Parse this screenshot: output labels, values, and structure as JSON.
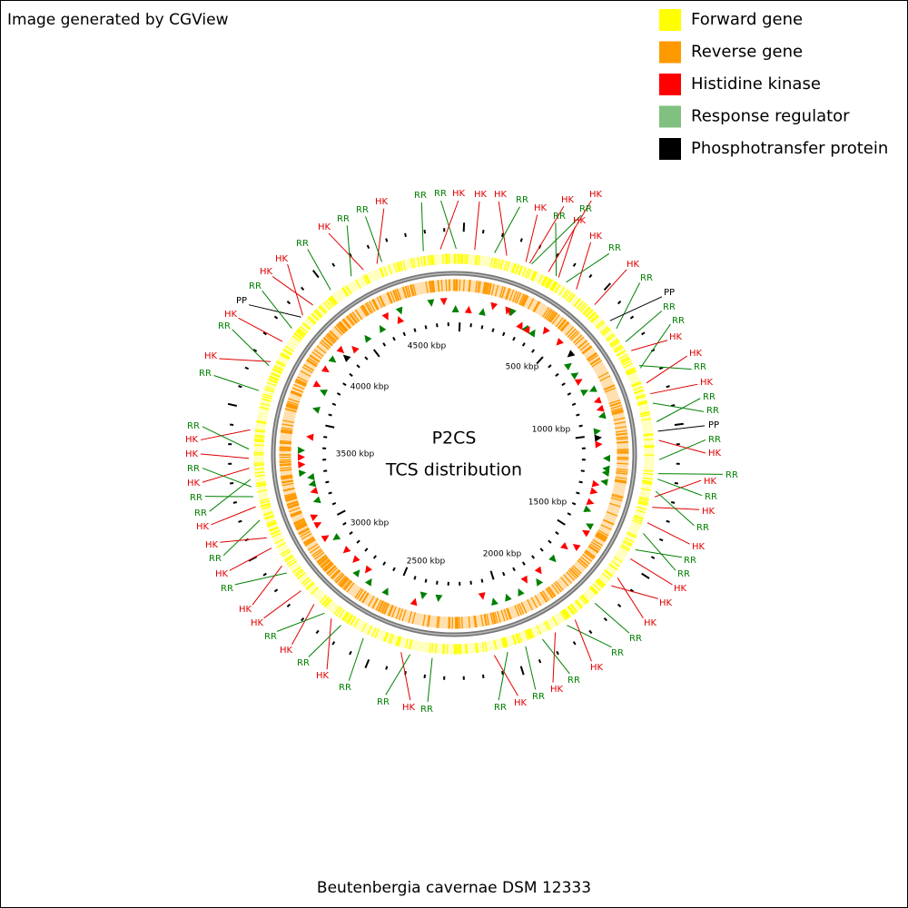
{
  "header": {
    "credit": "Image generated by CGView"
  },
  "legend": [
    {
      "name": "Forward gene",
      "color": "#ffff00"
    },
    {
      "name": "Reverse gene",
      "color": "#ff9900"
    },
    {
      "name": "Histidine kinase",
      "color": "#ff0000"
    },
    {
      "name": "Response regulator",
      "color": "#80c080"
    },
    {
      "name": "Phosphotransfer protein",
      "color": "#000000"
    }
  ],
  "center": {
    "title": "P2CS",
    "subtitle": "TCS distribution"
  },
  "scale_labels": [
    "500 kbp",
    "1000 kbp",
    "1500 kbp",
    "2000 kbp",
    "2500 kbp",
    "3000 kbp",
    "3500 kbp",
    "4000 kbp",
    "4500 kbp"
  ],
  "feature_label_colors": {
    "HK": "#e00000",
    "RR": "#008000",
    "PP": "#000000"
  },
  "feature_labels": [
    "HK",
    "RR",
    "RR",
    "HK",
    "HK",
    "HK",
    "RR",
    "HK",
    "RR",
    "HK",
    "HK",
    "RR",
    "HK",
    "HK",
    "RR",
    "HK",
    "RR",
    "PP",
    "RR",
    "RR",
    "HK",
    "HK",
    "RR",
    "HK",
    "RR",
    "RR",
    "PP",
    "RR",
    "HK",
    "RR",
    "HK",
    "RR",
    "HK",
    "RR",
    "HK",
    "RR",
    "RR",
    "HK",
    "HK",
    "HK",
    "RR",
    "RR",
    "HK",
    "RR",
    "HK",
    "RR",
    "HK",
    "RR",
    "RR",
    "HK",
    "RR",
    "RR",
    "HK",
    "RR",
    "HK",
    "RR",
    "HK",
    "HK",
    "RR",
    "HK",
    "RR",
    "HK",
    "HK",
    "RR",
    "RR",
    "HK",
    "RR",
    "HK",
    "HK",
    "RR",
    "RR",
    "HK",
    "RR",
    "HK",
    "PP",
    "RR",
    "HK",
    "HK",
    "RR",
    "HK",
    "RR",
    "RR"
  ],
  "footer": {
    "organism": "Beutenbergia cavernae DSM 12333"
  }
}
